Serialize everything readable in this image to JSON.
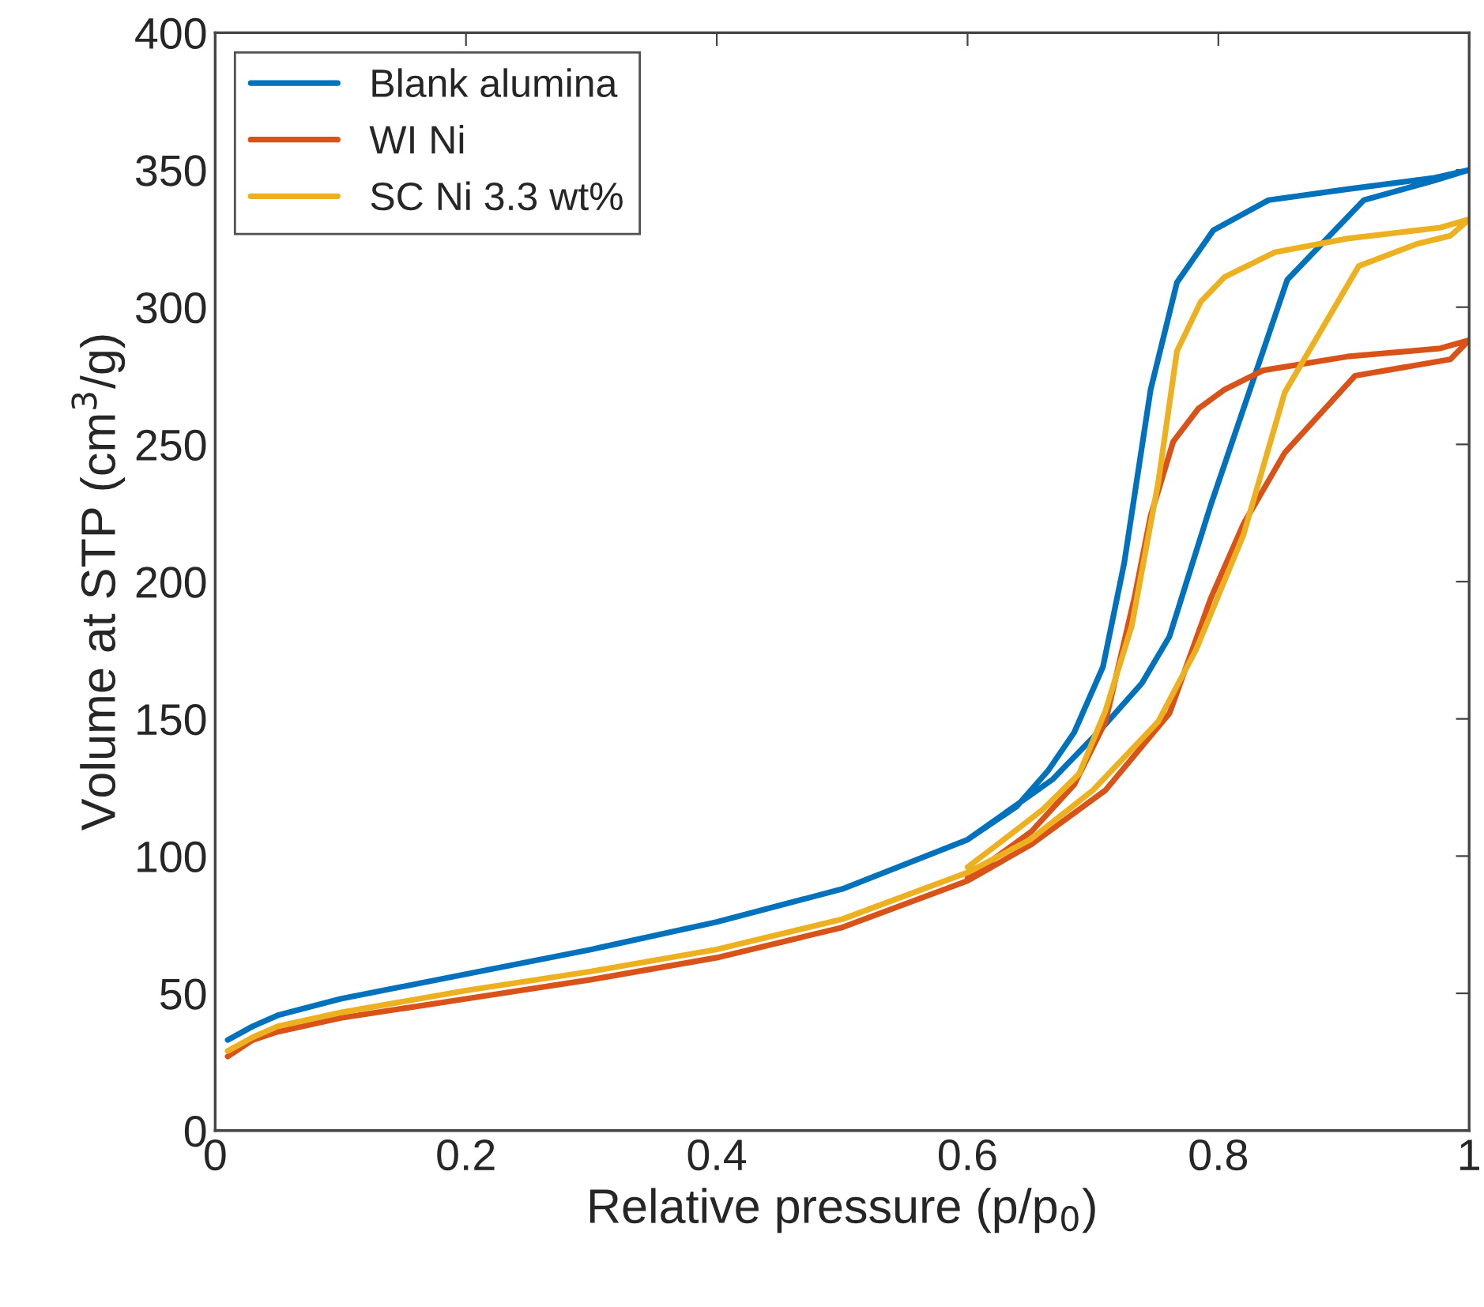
{
  "chart_data": {
    "type": "line",
    "xlabel": "Relative pressure (p/p$_{0}$)",
    "ylabel": "Volume at STP (cm$^{3}$/g)",
    "xlim": [
      0,
      1
    ],
    "ylim": [
      0,
      400
    ],
    "xticks": [
      0,
      {
        "value": 0.2,
        "label": "0.2"
      },
      {
        "value": 0.4,
        "label": "0.4"
      },
      {
        "value": 0.6,
        "label": "0.6"
      },
      {
        "value": 0.8,
        "label": "0.8"
      },
      1
    ],
    "yticks": [
      0,
      50,
      100,
      150,
      200,
      250,
      300,
      350,
      400
    ],
    "grid": false,
    "legend": "top left",
    "marker": "none",
    "line_style": "solid",
    "series": [
      {
        "name": "Blank alumina",
        "color": "#0072bd",
        "x": [
          0.01,
          0.03,
          0.05,
          0.1,
          0.2,
          0.3,
          0.4,
          0.5,
          0.6,
          0.668,
          0.706,
          0.739,
          0.761,
          0.794,
          0.855,
          0.916,
          0.971,
          1,
          0.971,
          0.903,
          0.84,
          0.796,
          0.767,
          0.746,
          0.725,
          0.708,
          0.685,
          0.664,
          0.639,
          0.6
        ],
        "values": [
          33,
          38,
          42,
          48,
          57,
          66,
          76,
          88,
          106,
          128,
          146,
          163,
          180,
          228,
          310,
          339,
          346,
          350,
          347,
          343,
          339,
          328,
          309,
          270,
          207,
          169,
          145,
          131,
          118,
          106
        ]
      },
      {
        "name": "WI Ni",
        "color": "#d95319",
        "x": [
          0.01,
          0.03,
          0.05,
          0.1,
          0.2,
          0.3,
          0.4,
          0.5,
          0.6,
          0.65,
          0.71,
          0.761,
          0.794,
          0.82,
          0.853,
          0.909,
          0.985,
          1,
          0.977,
          0.903,
          0.836,
          0.805,
          0.784,
          0.764,
          0.746,
          0.733,
          0.71,
          0.685,
          0.651,
          0.6
        ],
        "values": [
          27,
          33,
          36,
          41,
          48,
          55,
          63,
          74,
          91,
          104,
          124,
          152,
          194,
          221,
          247,
          275,
          281,
          288,
          285,
          282,
          277,
          270,
          263,
          251,
          224,
          194,
          149,
          126,
          109,
          92
        ]
      },
      {
        "name": "SC Ni 3.3 wt%",
        "color": "#edb120",
        "x": [
          0.01,
          0.03,
          0.05,
          0.1,
          0.2,
          0.3,
          0.4,
          0.5,
          0.6,
          0.65,
          0.7,
          0.752,
          0.782,
          0.82,
          0.853,
          0.912,
          0.958,
          0.985,
          1,
          0.977,
          0.903,
          0.845,
          0.805,
          0.786,
          0.767,
          0.752,
          0.731,
          0.71,
          0.689,
          0.66,
          0.626,
          0.6
        ],
        "values": [
          29,
          34,
          38,
          43,
          51,
          58,
          66,
          77,
          94,
          106,
          124,
          149,
          175,
          217,
          269,
          315,
          323,
          326,
          332,
          329,
          325,
          320,
          311,
          302,
          284,
          236,
          184,
          153,
          130,
          117,
          105,
          96
        ]
      }
    ]
  }
}
